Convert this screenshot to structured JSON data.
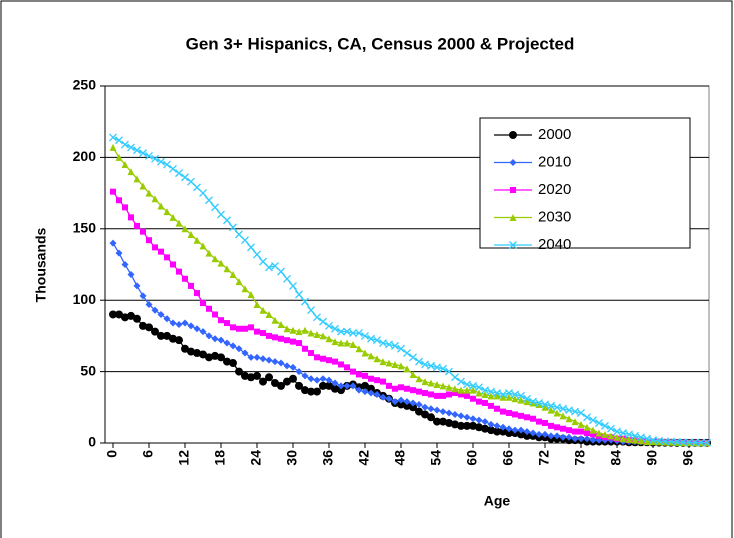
{
  "chart_data": {
    "type": "line",
    "title": "Gen 3+ Hispanics, CA, Census 2000 & Projected",
    "x_label": "Age",
    "y_label": "Thousands",
    "categories": [
      "0",
      null,
      null,
      null,
      null,
      null,
      "6",
      null,
      null,
      null,
      null,
      null,
      "12",
      null,
      null,
      null,
      null,
      null,
      "18",
      null,
      null,
      null,
      null,
      null,
      "24",
      null,
      null,
      null,
      null,
      null,
      "30",
      null,
      null,
      null,
      null,
      null,
      "36",
      null,
      null,
      null,
      null,
      null,
      "42",
      null,
      null,
      null,
      null,
      null,
      "48",
      null,
      null,
      null,
      null,
      null,
      "54",
      null,
      null,
      null,
      null,
      null,
      "60",
      null,
      null,
      null,
      null,
      null,
      "66",
      null,
      null,
      null,
      null,
      null,
      "72",
      null,
      null,
      null,
      null,
      null,
      "78",
      null,
      null,
      null,
      null,
      null,
      "84",
      null,
      null,
      null,
      null,
      null,
      "90",
      null,
      null,
      null,
      null,
      null,
      "96",
      null,
      null,
      null
    ],
    "ylim": [
      0,
      250
    ],
    "yticks": [
      0,
      50,
      100,
      150,
      200,
      250
    ],
    "grid": true,
    "legend": "upper right",
    "series": [
      {
        "name": "2000",
        "color": "#000000",
        "marker": "circle",
        "values": [
          90,
          90,
          88,
          89,
          87,
          82,
          81,
          78,
          75,
          75,
          73,
          72,
          66,
          64,
          63,
          62,
          60,
          61,
          60,
          57,
          56,
          50,
          47,
          46,
          47,
          43,
          46,
          42,
          40,
          43,
          45,
          40,
          37,
          36,
          36,
          40,
          40,
          38,
          37,
          40,
          41,
          39,
          40,
          38,
          35,
          33,
          31,
          28,
          27,
          26,
          25,
          22,
          20,
          18,
          15,
          15,
          14,
          13,
          12,
          12,
          12,
          11,
          10,
          9,
          8,
          8,
          7,
          7,
          6,
          5,
          5,
          4,
          4,
          3,
          3,
          3,
          2,
          2,
          2,
          1,
          1,
          1,
          1,
          1,
          1,
          1,
          0.5,
          0.5,
          0.5,
          0.5,
          0.3,
          0.3,
          0.2,
          0.2,
          0.1,
          0.1,
          0.1,
          0.1,
          0.1,
          0.1
        ]
      },
      {
        "name": "2010",
        "color": "#3366ff",
        "marker": "diamond",
        "values": [
          140,
          133,
          125,
          118,
          110,
          103,
          97,
          93,
          90,
          87,
          84,
          83,
          84,
          82,
          80,
          78,
          75,
          73,
          72,
          70,
          68,
          66,
          63,
          60,
          60,
          59,
          58,
          57,
          56,
          54,
          53,
          50,
          47,
          45,
          44,
          45,
          44,
          42,
          40,
          40,
          40,
          37,
          36,
          35,
          34,
          32,
          31,
          29,
          30,
          29,
          28,
          27,
          25,
          24,
          23,
          22,
          21,
          20,
          19,
          18,
          17,
          16,
          15,
          13,
          12,
          11,
          10,
          9,
          9,
          8,
          7,
          6,
          6,
          5,
          5,
          4,
          4,
          3,
          3,
          3,
          2,
          2,
          2,
          2,
          1.5,
          1,
          1,
          1,
          0.8,
          0.6,
          0.5,
          0.4,
          0.3,
          0.3,
          0.2,
          0.2,
          0.1,
          0.1,
          0.1,
          0.1
        ]
      },
      {
        "name": "2020",
        "color": "#ff00ff",
        "marker": "square",
        "values": [
          176,
          170,
          165,
          158,
          152,
          148,
          142,
          137,
          134,
          130,
          125,
          120,
          115,
          110,
          105,
          98,
          94,
          90,
          86,
          84,
          81,
          80,
          80,
          81,
          78,
          77,
          75,
          74,
          73,
          72,
          71,
          70,
          66,
          63,
          60,
          59,
          58,
          57,
          55,
          53,
          50,
          48,
          47,
          45,
          44,
          43,
          40,
          38,
          39,
          38,
          37,
          36,
          35,
          34,
          33,
          33,
          34,
          35,
          34,
          33,
          31,
          29,
          28,
          26,
          24,
          22,
          21,
          20,
          19,
          18,
          17,
          15,
          14,
          12,
          11,
          10,
          9,
          8,
          8,
          7,
          6,
          5,
          4,
          4,
          3,
          3,
          2,
          2,
          1.5,
          1,
          1,
          0.8,
          0.6,
          0.5,
          0.4,
          0.3,
          0.2,
          0.2,
          0.1,
          0.1
        ]
      },
      {
        "name": "2030",
        "color": "#99cc00",
        "marker": "triangle",
        "values": [
          207,
          200,
          195,
          190,
          185,
          180,
          175,
          171,
          166,
          162,
          158,
          154,
          150,
          146,
          142,
          138,
          133,
          129,
          126,
          122,
          118,
          113,
          108,
          104,
          97,
          93,
          90,
          86,
          83,
          80,
          79,
          78,
          79,
          77,
          76,
          75,
          73,
          71,
          70,
          70,
          69,
          66,
          63,
          61,
          59,
          57,
          56,
          55,
          54,
          52,
          48,
          45,
          43,
          42,
          41,
          40,
          39,
          38,
          37,
          37,
          37,
          35,
          34,
          33,
          33,
          32,
          32,
          31,
          30,
          29,
          28,
          27,
          25,
          23,
          21,
          19,
          17,
          15,
          13,
          11,
          9,
          7,
          6,
          5,
          4,
          3,
          2.5,
          2,
          1.5,
          1,
          1,
          0.8,
          0.6,
          0.5,
          0.4,
          0.3,
          0.3,
          0.2,
          0.2,
          0.2
        ]
      },
      {
        "name": "2040",
        "color": "#33ccff",
        "marker": "x",
        "values": [
          214,
          212,
          209,
          207,
          205,
          203,
          201,
          199,
          197,
          195,
          192,
          189,
          186,
          183,
          179,
          175,
          170,
          165,
          160,
          156,
          151,
          146,
          142,
          137,
          132,
          127,
          123,
          124,
          120,
          115,
          110,
          104,
          99,
          93,
          88,
          85,
          82,
          80,
          78,
          78,
          77,
          77,
          75,
          73,
          72,
          70,
          69,
          68,
          66,
          63,
          60,
          57,
          55,
          54,
          53,
          52,
          50,
          46,
          43,
          41,
          40,
          39,
          37,
          36,
          35,
          34,
          35,
          34,
          33,
          31,
          29,
          28,
          27,
          26,
          25,
          24,
          23,
          22,
          21,
          18,
          16,
          14,
          12,
          10,
          8,
          7,
          6,
          5,
          4,
          3,
          2,
          1.5,
          1,
          1,
          0.8,
          0.6,
          0.5,
          0.4,
          0.3,
          0.2
        ]
      }
    ]
  }
}
